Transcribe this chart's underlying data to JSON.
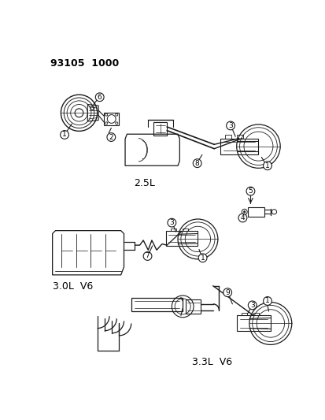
{
  "title": "93105  1000",
  "background_color": "#ffffff",
  "text_color": "#000000",
  "line_color": "#1a1a1a",
  "diagram_labels": {
    "label_2_5L": "2.5L",
    "label_3_0L": "3.0L  V6",
    "label_3_3L": "3.3L  V6"
  },
  "figure_width": 4.14,
  "figure_height": 5.33,
  "dpi": 100
}
